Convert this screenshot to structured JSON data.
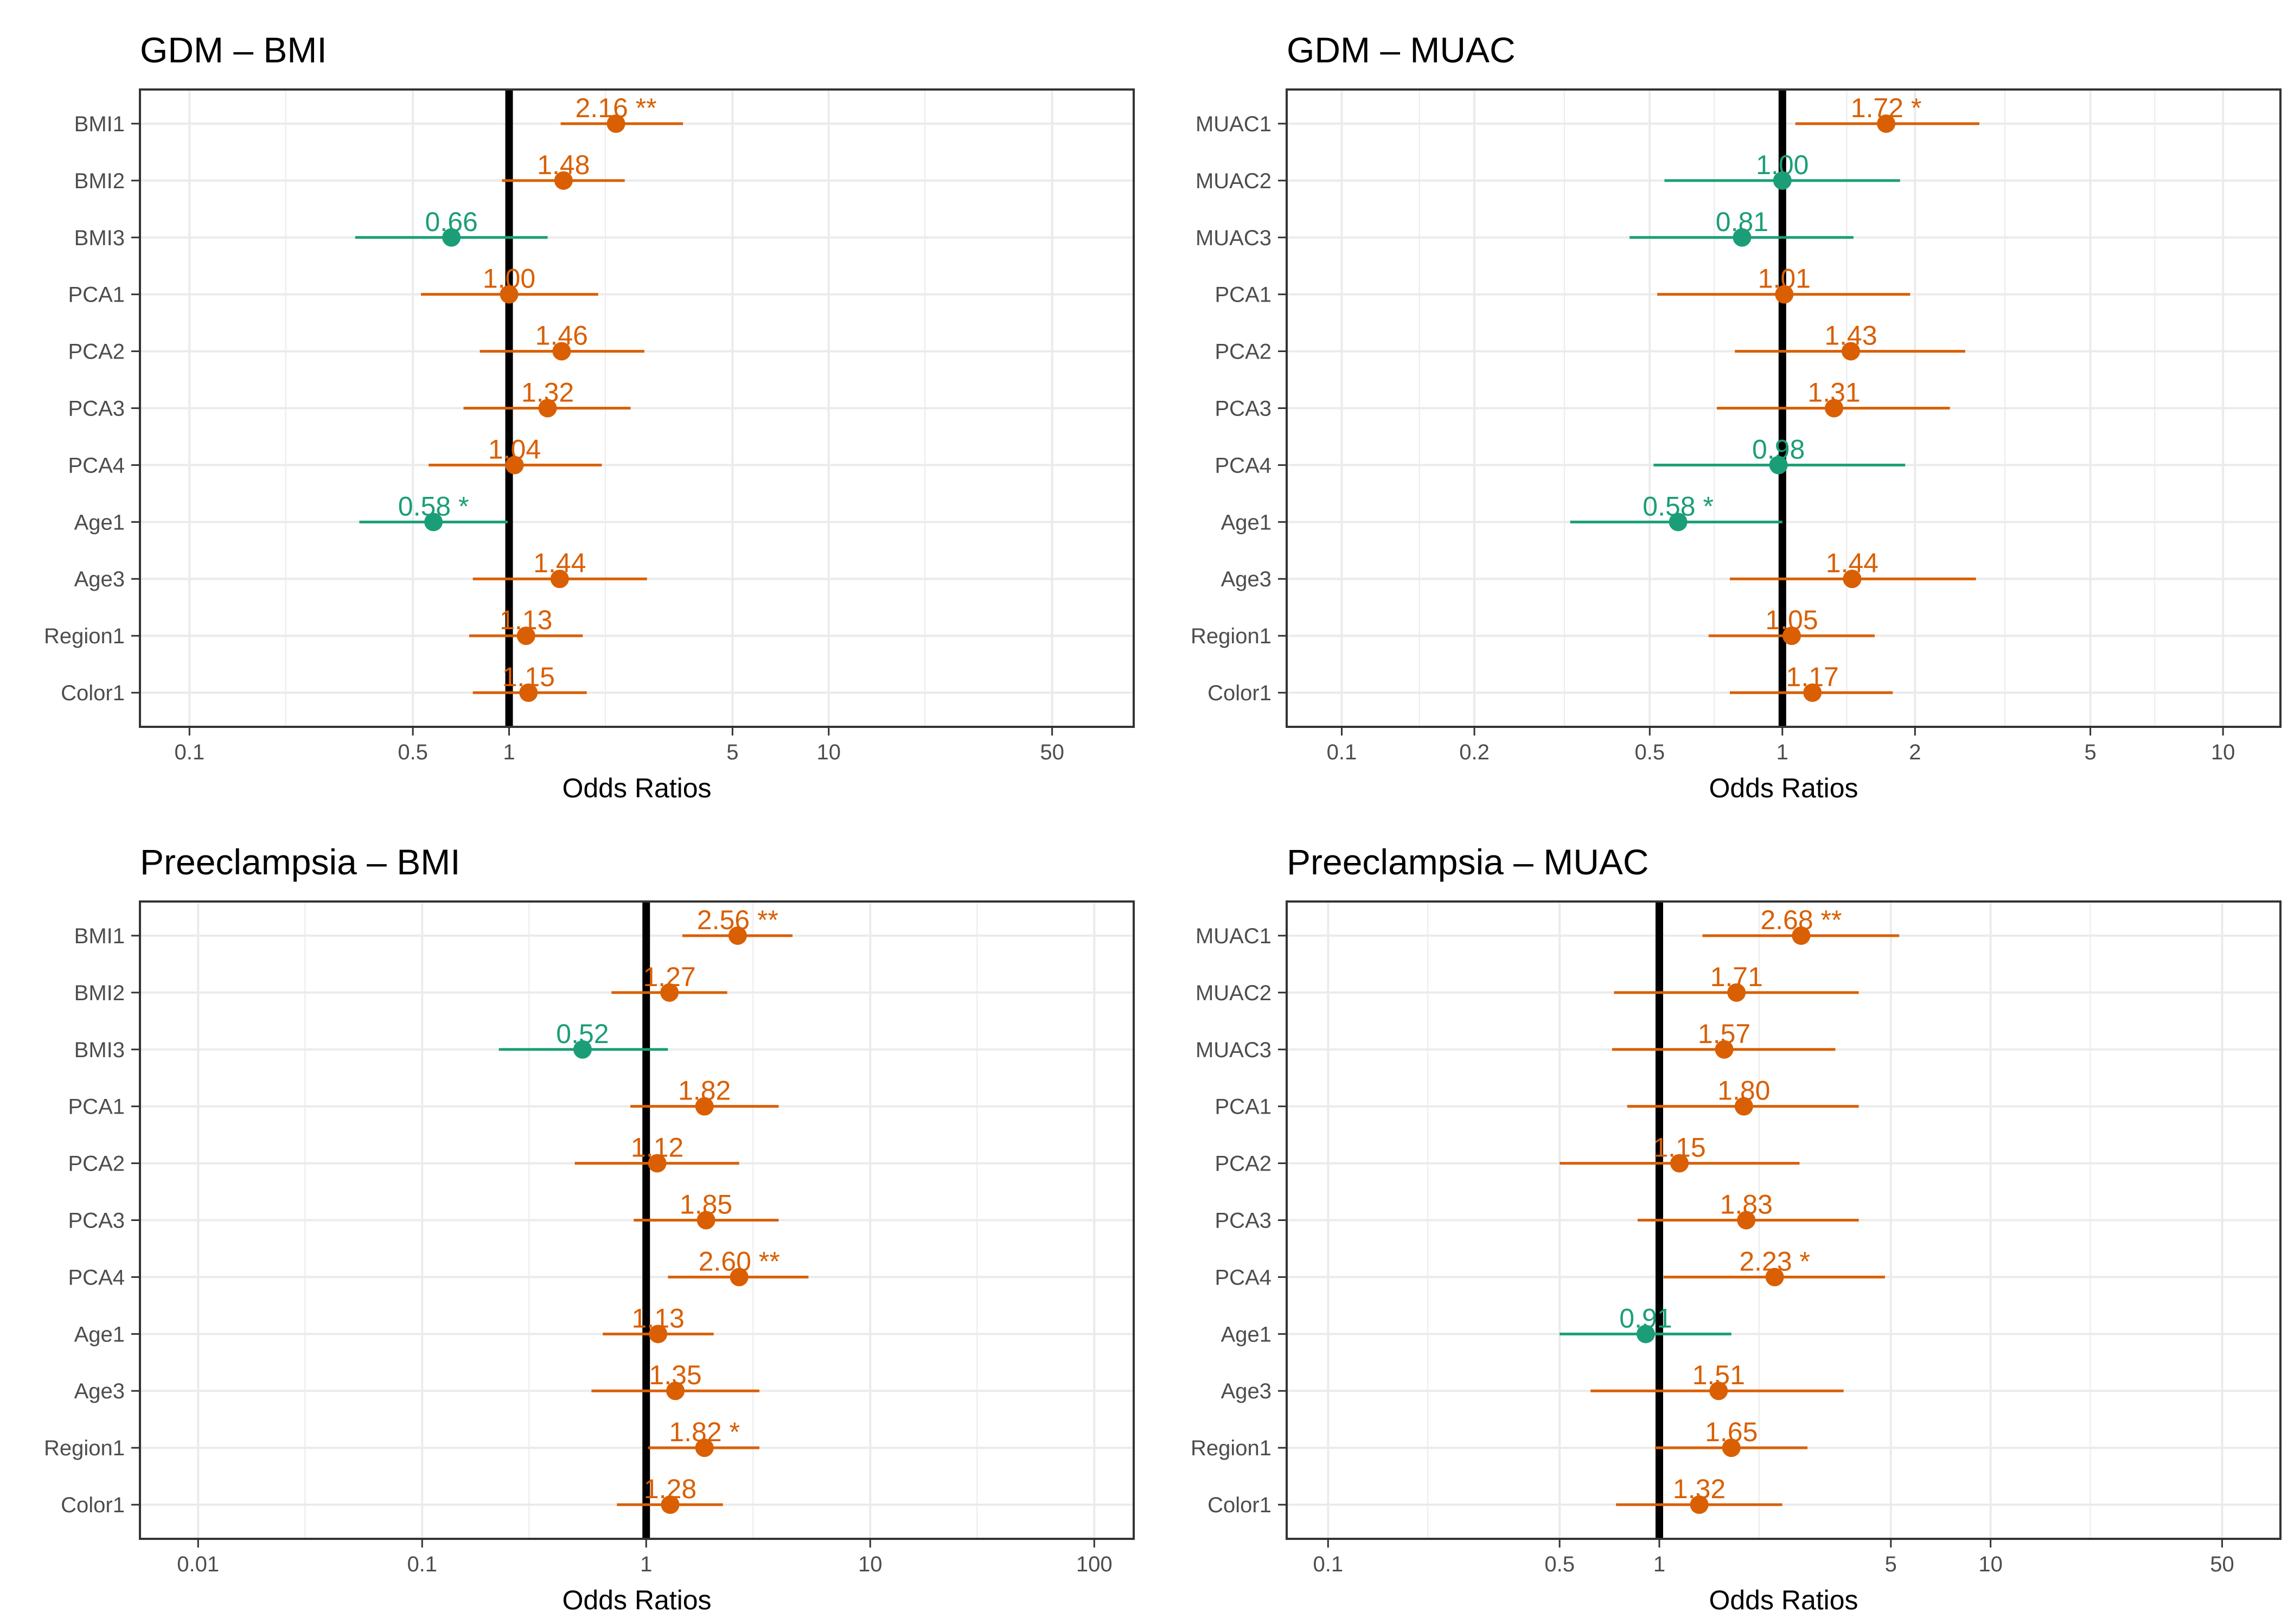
{
  "colors": {
    "increased": "#d95f02",
    "decreased": "#1b9e77",
    "refline": "#000000",
    "grid": "#ebebeb",
    "frame": "#333333"
  },
  "chart_data": [
    {
      "type": "forest",
      "title": "GDM – BMI",
      "xlabel": "Odds Ratios",
      "xscale": "log",
      "xlim": [
        0.07,
        90
      ],
      "xticks": [
        0.1,
        0.5,
        1,
        5,
        10,
        50
      ],
      "xtick_labels": [
        "0.1",
        "0.5",
        "1",
        "5",
        "10",
        "50"
      ],
      "xminor": [
        0.2,
        2,
        20
      ],
      "refline": 1,
      "rows": [
        {
          "label": "BMI1",
          "or": 2.16,
          "lo": 1.45,
          "hi": 3.5,
          "text": "2.16 **",
          "dir": "increased"
        },
        {
          "label": "BMI2",
          "or": 1.48,
          "lo": 0.95,
          "hi": 2.3,
          "text": "1.48",
          "dir": "increased"
        },
        {
          "label": "BMI3",
          "or": 0.66,
          "lo": 0.33,
          "hi": 1.32,
          "text": "0.66",
          "dir": "decreased"
        },
        {
          "label": "PCA1",
          "or": 1.0,
          "lo": 0.53,
          "hi": 1.9,
          "text": "1.00",
          "dir": "increased"
        },
        {
          "label": "PCA2",
          "or": 1.46,
          "lo": 0.81,
          "hi": 2.65,
          "text": "1.46",
          "dir": "increased"
        },
        {
          "label": "PCA3",
          "or": 1.32,
          "lo": 0.72,
          "hi": 2.4,
          "text": "1.32",
          "dir": "increased"
        },
        {
          "label": "PCA4",
          "or": 1.04,
          "lo": 0.56,
          "hi": 1.95,
          "text": "1.04",
          "dir": "increased"
        },
        {
          "label": "Age1",
          "or": 0.58,
          "lo": 0.34,
          "hi": 0.99,
          "text": "0.58 *",
          "dir": "decreased"
        },
        {
          "label": "Age3",
          "or": 1.44,
          "lo": 0.77,
          "hi": 2.7,
          "text": "1.44",
          "dir": "increased"
        },
        {
          "label": "Region1",
          "or": 1.13,
          "lo": 0.75,
          "hi": 1.7,
          "text": "1.13",
          "dir": "increased"
        },
        {
          "label": "Color1",
          "or": 1.15,
          "lo": 0.77,
          "hi": 1.75,
          "text": "1.15",
          "dir": "increased"
        }
      ]
    },
    {
      "type": "forest",
      "title": "GDM – MUAC",
      "xlabel": "Odds Ratios",
      "xscale": "log",
      "xlim": [
        0.075,
        13.5
      ],
      "xticks": [
        0.1,
        0.2,
        0.5,
        1,
        2,
        5,
        10
      ],
      "xtick_labels": [
        "0.1",
        "0.2",
        "0.5",
        "1",
        "2",
        "5",
        "10"
      ],
      "xminor": [
        0.15,
        0.32,
        0.7,
        1.4,
        3.2,
        7
      ],
      "refline": 1,
      "rows": [
        {
          "label": "MUAC1",
          "or": 1.72,
          "lo": 1.07,
          "hi": 2.8,
          "text": "1.72 *",
          "dir": "increased"
        },
        {
          "label": "MUAC2",
          "or": 1.0,
          "lo": 0.54,
          "hi": 1.85,
          "text": "1.00",
          "dir": "decreased"
        },
        {
          "label": "MUAC3",
          "or": 0.81,
          "lo": 0.45,
          "hi": 1.45,
          "text": "0.81",
          "dir": "decreased"
        },
        {
          "label": "PCA1",
          "or": 1.01,
          "lo": 0.52,
          "hi": 1.95,
          "text": "1.01",
          "dir": "increased"
        },
        {
          "label": "PCA2",
          "or": 1.43,
          "lo": 0.78,
          "hi": 2.6,
          "text": "1.43",
          "dir": "increased"
        },
        {
          "label": "PCA3",
          "or": 1.31,
          "lo": 0.71,
          "hi": 2.4,
          "text": "1.31",
          "dir": "increased"
        },
        {
          "label": "PCA4",
          "or": 0.98,
          "lo": 0.51,
          "hi": 1.9,
          "text": "0.98",
          "dir": "decreased"
        },
        {
          "label": "Age1",
          "or": 0.58,
          "lo": 0.33,
          "hi": 1.0,
          "text": "0.58 *",
          "dir": "decreased"
        },
        {
          "label": "Age3",
          "or": 1.44,
          "lo": 0.76,
          "hi": 2.75,
          "text": "1.44",
          "dir": "increased"
        },
        {
          "label": "Region1",
          "or": 1.05,
          "lo": 0.68,
          "hi": 1.62,
          "text": "1.05",
          "dir": "increased"
        },
        {
          "label": "Color1",
          "or": 1.17,
          "lo": 0.76,
          "hi": 1.78,
          "text": "1.17",
          "dir": "increased"
        }
      ]
    },
    {
      "type": "forest",
      "title": "Preeclampsia – BMI",
      "xlabel": "Odds Ratios",
      "xscale": "log",
      "xlim": [
        0.0055,
        150
      ],
      "xticks": [
        0.01,
        0.1,
        1,
        10,
        100
      ],
      "xtick_labels": [
        "0.01",
        "0.1",
        "1",
        "10",
        "100"
      ],
      "xminor": [
        0.03,
        0.3,
        3,
        30
      ],
      "refline": 1,
      "rows": [
        {
          "label": "BMI1",
          "or": 2.56,
          "lo": 1.45,
          "hi": 4.5,
          "text": "2.56 **",
          "dir": "increased"
        },
        {
          "label": "BMI2",
          "or": 1.27,
          "lo": 0.7,
          "hi": 2.3,
          "text": "1.27",
          "dir": "increased"
        },
        {
          "label": "BMI3",
          "or": 0.52,
          "lo": 0.22,
          "hi": 1.25,
          "text": "0.52",
          "dir": "decreased"
        },
        {
          "label": "PCA1",
          "or": 1.82,
          "lo": 0.85,
          "hi": 3.9,
          "text": "1.82",
          "dir": "increased"
        },
        {
          "label": "PCA2",
          "or": 1.12,
          "lo": 0.48,
          "hi": 2.6,
          "text": "1.12",
          "dir": "increased"
        },
        {
          "label": "PCA3",
          "or": 1.85,
          "lo": 0.88,
          "hi": 3.9,
          "text": "1.85",
          "dir": "increased"
        },
        {
          "label": "PCA4",
          "or": 2.6,
          "lo": 1.25,
          "hi": 5.3,
          "text": "2.60 **",
          "dir": "increased"
        },
        {
          "label": "Age1",
          "or": 1.13,
          "lo": 0.64,
          "hi": 2.0,
          "text": "1.13",
          "dir": "increased"
        },
        {
          "label": "Age3",
          "or": 1.35,
          "lo": 0.57,
          "hi": 3.2,
          "text": "1.35",
          "dir": "increased"
        },
        {
          "label": "Region1",
          "or": 1.82,
          "lo": 1.02,
          "hi": 3.2,
          "text": "1.82 *",
          "dir": "increased"
        },
        {
          "label": "Color1",
          "or": 1.28,
          "lo": 0.74,
          "hi": 2.2,
          "text": "1.28",
          "dir": "increased"
        }
      ]
    },
    {
      "type": "forest",
      "title": "Preeclampsia – MUAC",
      "xlabel": "Odds Ratios",
      "xscale": "log",
      "xlim": [
        0.075,
        75
      ],
      "xticks": [
        0.1,
        0.5,
        1,
        5,
        10,
        50
      ],
      "xtick_labels": [
        "0.1",
        "0.5",
        "1",
        "5",
        "10",
        "50"
      ],
      "xminor": [
        0.2,
        2,
        20
      ],
      "refline": 1,
      "rows": [
        {
          "label": "MUAC1",
          "or": 2.68,
          "lo": 1.35,
          "hi": 5.3,
          "text": "2.68 **",
          "dir": "increased"
        },
        {
          "label": "MUAC2",
          "or": 1.71,
          "lo": 0.73,
          "hi": 4.0,
          "text": "1.71",
          "dir": "increased"
        },
        {
          "label": "MUAC3",
          "or": 1.57,
          "lo": 0.72,
          "hi": 3.4,
          "text": "1.57",
          "dir": "increased"
        },
        {
          "label": "PCA1",
          "or": 1.8,
          "lo": 0.8,
          "hi": 4.0,
          "text": "1.80",
          "dir": "increased"
        },
        {
          "label": "PCA2",
          "or": 1.15,
          "lo": 0.5,
          "hi": 2.65,
          "text": "1.15",
          "dir": "increased"
        },
        {
          "label": "PCA3",
          "or": 1.83,
          "lo": 0.86,
          "hi": 4.0,
          "text": "1.83",
          "dir": "increased"
        },
        {
          "label": "PCA4",
          "or": 2.23,
          "lo": 1.03,
          "hi": 4.8,
          "text": "2.23 *",
          "dir": "increased"
        },
        {
          "label": "Age1",
          "or": 0.91,
          "lo": 0.5,
          "hi": 1.65,
          "text": "0.91",
          "dir": "decreased"
        },
        {
          "label": "Age3",
          "or": 1.51,
          "lo": 0.62,
          "hi": 3.6,
          "text": "1.51",
          "dir": "increased"
        },
        {
          "label": "Region1",
          "or": 1.65,
          "lo": 0.97,
          "hi": 2.8,
          "text": "1.65",
          "dir": "increased"
        },
        {
          "label": "Color1",
          "or": 1.32,
          "lo": 0.74,
          "hi": 2.35,
          "text": "1.32",
          "dir": "increased"
        }
      ]
    }
  ]
}
